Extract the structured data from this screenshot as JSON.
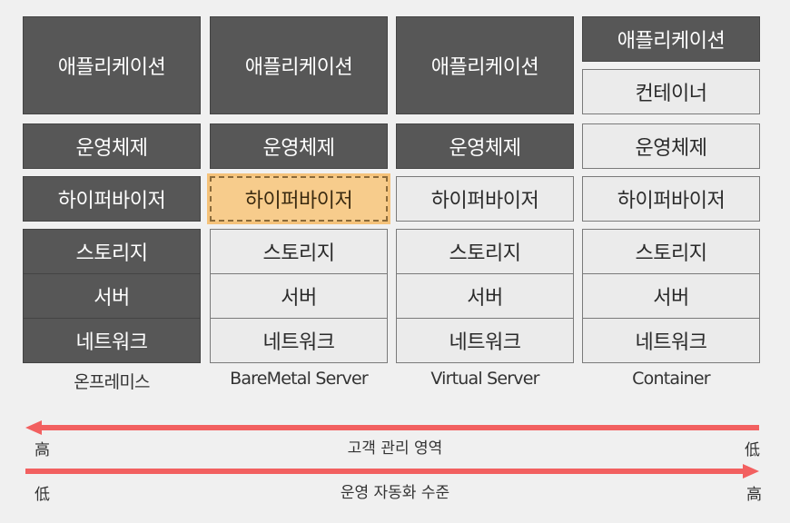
{
  "columns": [
    {
      "label": "온프레미스",
      "app": "애플리케이션",
      "os": "운영체제",
      "hypervisor": "하이퍼바이저",
      "storage": "스토리지",
      "server": "서버",
      "network": "네트워크"
    },
    {
      "label": "BareMetal Server",
      "app": "애플리케이션",
      "os": "운영체제",
      "hypervisor": "하이퍼바이저",
      "storage": "스토리지",
      "server": "서버",
      "network": "네트워크"
    },
    {
      "label": "Virtual Server",
      "app": "애플리케이션",
      "os": "운영체제",
      "hypervisor": "하이퍼바이저",
      "storage": "스토리지",
      "server": "서버",
      "network": "네트워크"
    },
    {
      "label": "Container",
      "app": "애플리케이션",
      "container": "컨테이너",
      "os": "운영체제",
      "hypervisor": "하이퍼바이저",
      "storage": "스토리지",
      "server": "서버",
      "network": "네트워크"
    }
  ],
  "axis_customer": {
    "label": "고객 관리 영역",
    "left": "高",
    "right": "低"
  },
  "axis_automation": {
    "label": "운영 자동화 수준",
    "left": "低",
    "right": "高"
  },
  "colors": {
    "dark": "#575757",
    "light": "#ebebeb",
    "highlight": "#f7cc8c",
    "arrow": "#f26060"
  }
}
